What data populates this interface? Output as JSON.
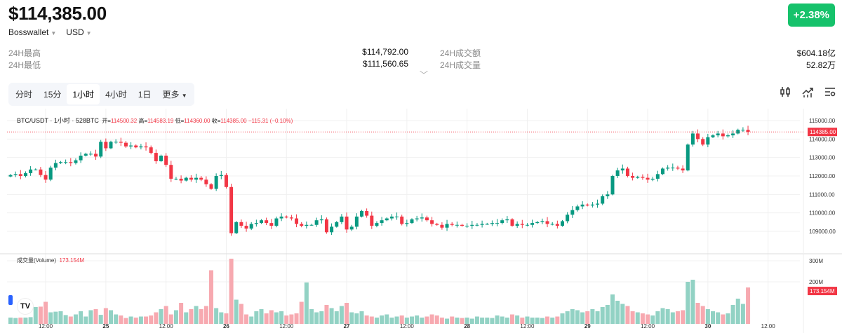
{
  "header": {
    "price": "$114,385.00",
    "exchange": "Bosswallet",
    "currency": "USD",
    "change": "+2.38%"
  },
  "stats": [
    {
      "label": "24H最高",
      "value": "$114,792.00"
    },
    {
      "label": "24H最低",
      "value": "$111,560.65"
    },
    {
      "label": "24H成交额",
      "value": "$604.18亿"
    },
    {
      "label": "24H成交量",
      "value": "52.82万"
    }
  ],
  "tabs": [
    "分时",
    "15分",
    "1小时",
    "4小时",
    "1日",
    "更多"
  ],
  "active_tab": "1小时",
  "tools": [
    "indicator-icon",
    "chart-type-icon",
    "settings-icon"
  ],
  "legend": {
    "symbol": "BTC/USDT · 1小时 · 528BTC",
    "open_label": "开=",
    "open": "114500.32",
    "high_label": "高=",
    "high": "114583.19",
    "low_label": "低=",
    "low": "114360.00",
    "close_label": "收=",
    "close": "114385.00",
    "change": "−115.31 (−0.10%)"
  },
  "volume_legend": {
    "label": "成交量(Volume)",
    "value": "173.154M"
  },
  "colors": {
    "up": "#089981",
    "down": "#f23645",
    "up_vol": "#92d2c4",
    "down_vol": "#f7a9b0",
    "badge": "#16c26b"
  },
  "chart_data": {
    "type": "candlestick",
    "interval": "1h",
    "price_axis": {
      "min": 108500,
      "max": 115200,
      "ticks": [
        "115000.00",
        "114000.00",
        "113000.00",
        "112000.00",
        "111000.00",
        "110000.00",
        "109000.00"
      ]
    },
    "last_price": "114385.00",
    "volume_axis": {
      "ticks": [
        "300M",
        "200M"
      ],
      "last": "173.154M"
    },
    "x_ticks": [
      {
        "i": 7,
        "label": "12:00"
      },
      {
        "i": 19,
        "label": "25"
      },
      {
        "i": 31,
        "label": "12:00"
      },
      {
        "i": 43,
        "label": "26"
      },
      {
        "i": 55,
        "label": "12:00"
      },
      {
        "i": 67,
        "label": "27"
      },
      {
        "i": 79,
        "label": "12:00"
      },
      {
        "i": 91,
        "label": "28"
      },
      {
        "i": 103,
        "label": "12:00"
      },
      {
        "i": 115,
        "label": "29"
      },
      {
        "i": 127,
        "label": "12:00"
      },
      {
        "i": 139,
        "label": "30"
      },
      {
        "i": 151,
        "label": "12:00"
      }
    ],
    "closes": [
      112050,
      112100,
      112000,
      112150,
      112350,
      112350,
      112050,
      111800,
      112450,
      112700,
      112750,
      112750,
      112700,
      112850,
      113100,
      113200,
      113200,
      113050,
      113850,
      113500,
      113850,
      113850,
      113800,
      113600,
      113650,
      113550,
      113600,
      113550,
      113250,
      112800,
      113100,
      112600,
      111850,
      111850,
      111750,
      111900,
      111800,
      111900,
      111800,
      111550,
      111300,
      112000,
      112050,
      111400,
      108900,
      109500,
      109300,
      109150,
      109400,
      109450,
      109600,
      109450,
      109300,
      109700,
      109800,
      109750,
      109700,
      109400,
      109300,
      109350,
      109350,
      109600,
      109650,
      108950,
      109250,
      109500,
      109800,
      109100,
      109250,
      109800,
      110100,
      109850,
      109300,
      109450,
      109600,
      109700,
      109800,
      109800,
      109400,
      109450,
      109650,
      109700,
      109750,
      109600,
      109400,
      109350,
      109200,
      109400,
      109350,
      109350,
      109300,
      109300,
      109350,
      109350,
      109400,
      109400,
      109450,
      109450,
      109600,
      109650,
      109300,
      109400,
      109350,
      109350,
      109450,
      109500,
      109550,
      109400,
      109400,
      109300,
      109550,
      109900,
      110150,
      110350,
      110450,
      110400,
      110450,
      110500,
      110900,
      111000,
      112000,
      112300,
      112400,
      112000,
      111900,
      111950,
      111900,
      111800,
      111850,
      112100,
      112400,
      112450,
      112450,
      112400,
      112300,
      113700,
      114300,
      114000,
      113700,
      114100,
      114200,
      114300,
      114150,
      114200,
      114300,
      114500,
      114500,
      114385
    ],
    "volumes_m": [
      30,
      28,
      30,
      30,
      32,
      80,
      82,
      105,
      55,
      58,
      60,
      42,
      35,
      45,
      60,
      35,
      65,
      70,
      43,
      75,
      65,
      45,
      40,
      28,
      35,
      30,
      35,
      35,
      40,
      55,
      70,
      85,
      45,
      65,
      100,
      55,
      70,
      85,
      70,
      85,
      255,
      75,
      55,
      50,
      310,
      115,
      95,
      45,
      35,
      60,
      70,
      50,
      65,
      55,
      60,
      40,
      45,
      50,
      105,
      197,
      70,
      55,
      60,
      90,
      75,
      60,
      85,
      100,
      55,
      50,
      60,
      40,
      35,
      30,
      40,
      45,
      30,
      35,
      40,
      30,
      35,
      40,
      30,
      35,
      45,
      40,
      30,
      25,
      35,
      30,
      28,
      30,
      25,
      35,
      30,
      30,
      28,
      40,
      35,
      30,
      45,
      40,
      30,
      35,
      30,
      30,
      28,
      35,
      30,
      35,
      50,
      60,
      70,
      65,
      55,
      60,
      70,
      60,
      80,
      90,
      140,
      110,
      95,
      85,
      60,
      55,
      50,
      45,
      40,
      60,
      75,
      70,
      55,
      60,
      65,
      200,
      210,
      100,
      85,
      70,
      60,
      55,
      45,
      50,
      90,
      120,
      95,
      173.154
    ]
  }
}
